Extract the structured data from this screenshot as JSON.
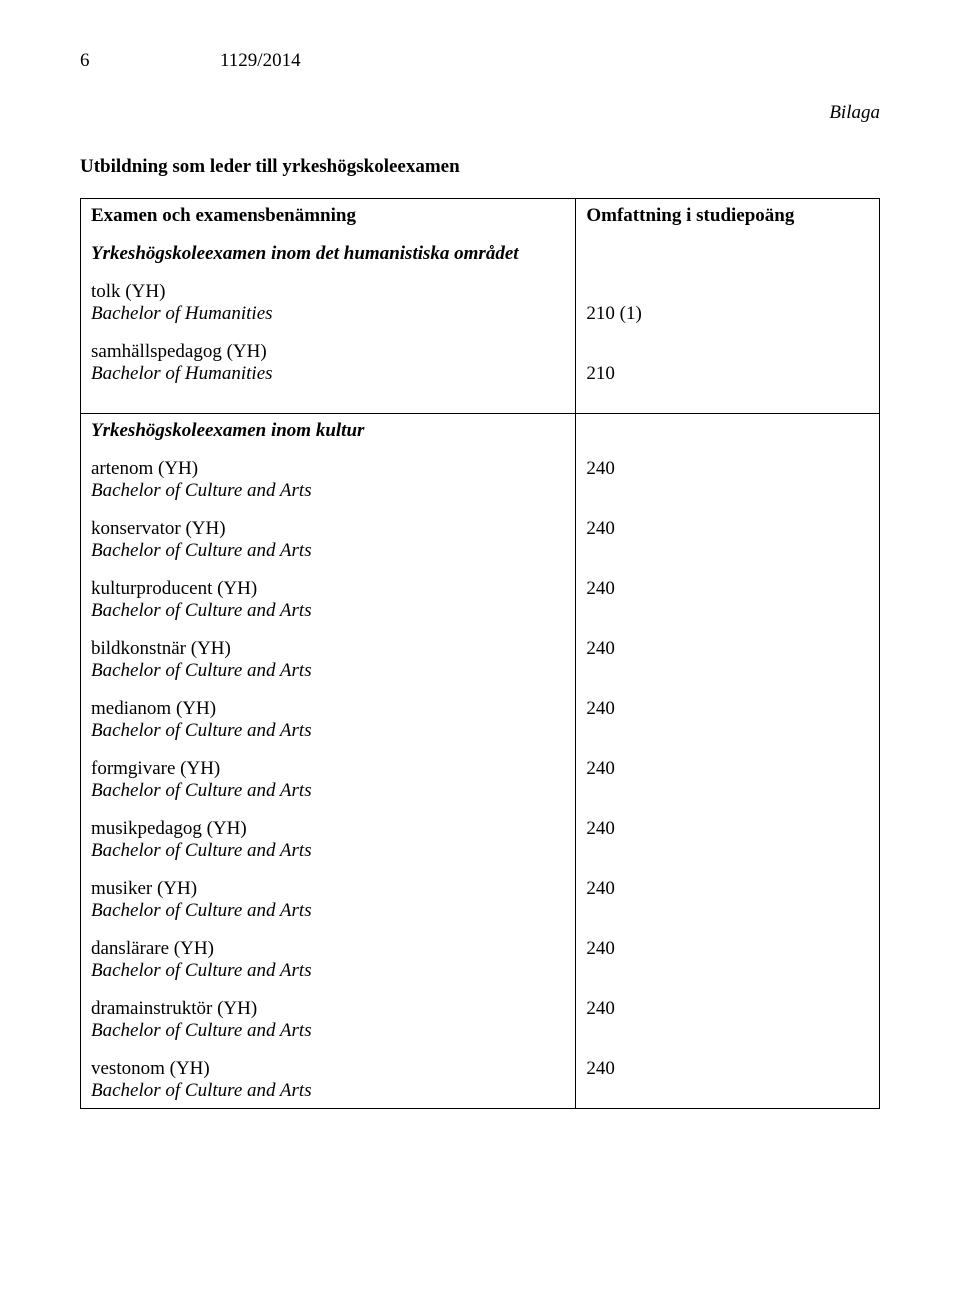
{
  "page_number": "6",
  "regulation_number": "1129/2014",
  "bilaga_label": "Bilaga",
  "main_title": "Utbildning som leder till yrkeshögskoleexamen",
  "table_header_left": "Examen och examensbenämning",
  "table_header_right": "Omfattning i studiepoäng",
  "group1_heading": "Yrkeshögskoleexamen inom det humanistiska området",
  "group1": [
    {
      "name": "tolk (YH)",
      "degree": "Bachelor of Humanities",
      "points": "210 (1)"
    },
    {
      "name": "samhällspedagog (YH)",
      "degree": "Bachelor of Humanities",
      "points": "210"
    }
  ],
  "group2_heading": "Yrkeshögskoleexamen inom kultur",
  "group2": [
    {
      "name": "artenom (YH)",
      "degree": "Bachelor of Culture and Arts",
      "points": "240"
    },
    {
      "name": "konservator (YH)",
      "degree": "Bachelor of Culture and Arts",
      "points": "240"
    },
    {
      "name": "kulturproducent (YH)",
      "degree": "Bachelor of Culture and Arts",
      "points": "240"
    },
    {
      "name": "bildkonstnär (YH)",
      "degree": "Bachelor of Culture and Arts",
      "points": "240"
    },
    {
      "name": "medianom (YH)",
      "degree": "Bachelor of Culture and Arts",
      "points": "240"
    },
    {
      "name": "formgivare (YH)",
      "degree": "Bachelor of Culture and Arts",
      "points": "240"
    },
    {
      "name": "musikpedagog (YH)",
      "degree": "Bachelor of Culture and Arts",
      "points": "240"
    },
    {
      "name": "musiker (YH)",
      "degree": "Bachelor of Culture and Arts",
      "points": "240"
    },
    {
      "name": "danslärare (YH)",
      "degree": "Bachelor of Culture and Arts",
      "points": "240"
    },
    {
      "name": "dramainstruktör (YH)",
      "degree": "Bachelor of Culture and Arts",
      "points": "240"
    },
    {
      "name": "vestonom (YH)",
      "degree": "Bachelor of Culture and Arts",
      "points": "240"
    }
  ]
}
